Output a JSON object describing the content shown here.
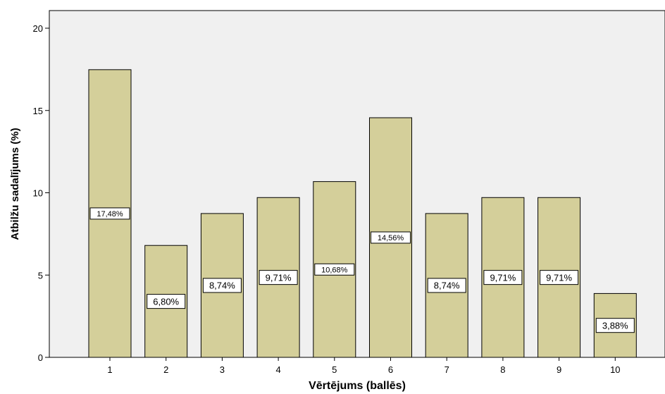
{
  "chart_data": {
    "type": "bar",
    "categories": [
      "1",
      "2",
      "3",
      "4",
      "5",
      "6",
      "7",
      "8",
      "9",
      "10"
    ],
    "values": [
      17.48,
      6.8,
      8.74,
      9.71,
      10.68,
      14.56,
      8.74,
      9.71,
      9.71,
      3.88
    ],
    "data_labels": [
      "17,48%",
      "6,80%",
      "8,74%",
      "9,71%",
      "10,68%",
      "14,56%",
      "8,74%",
      "9,71%",
      "9,71%",
      "3,88%"
    ],
    "ylabel": "Atbilžu sadalījums (%)",
    "xlabel": "Vērtējums (ballēs)",
    "ylim": [
      0,
      20
    ],
    "yticks": [
      "0",
      "5",
      "10",
      "15",
      "20"
    ],
    "grid": false,
    "colors": {
      "bar_fill": "#d4cf9a",
      "bar_stroke": "#000000",
      "plot_bg": "#f0f0f0"
    }
  }
}
